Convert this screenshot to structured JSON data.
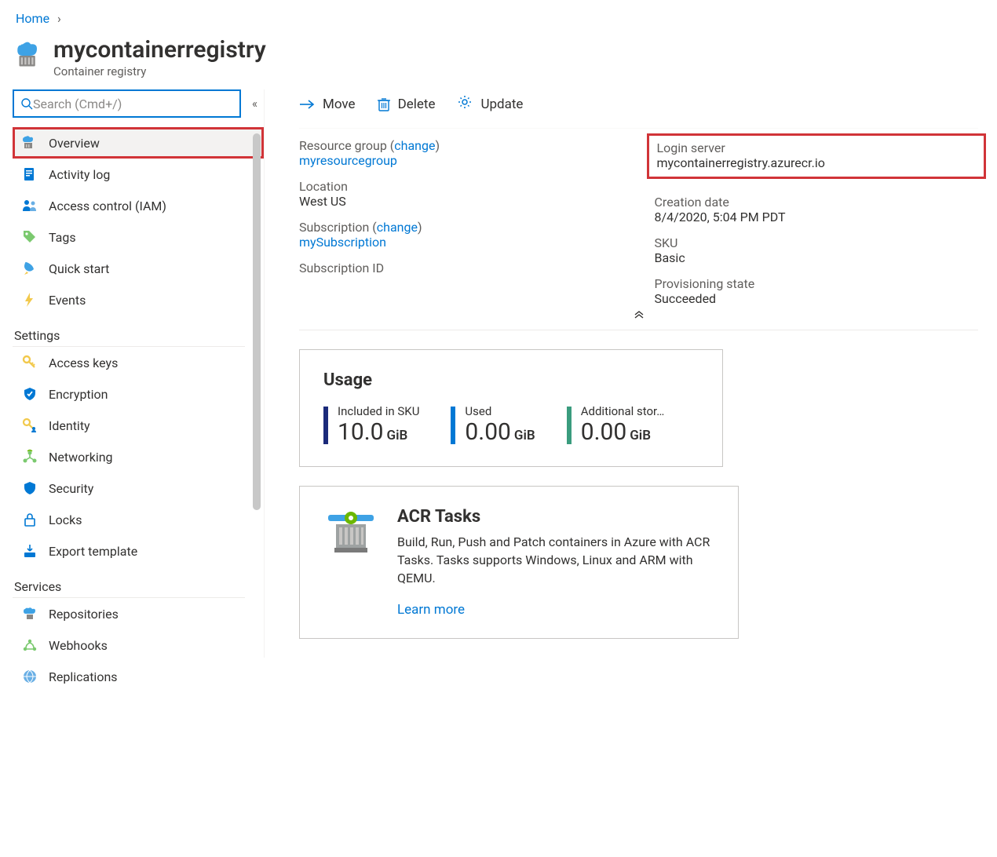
{
  "breadcrumb": {
    "home": "Home"
  },
  "header": {
    "title": "mycontainerregistry",
    "subtitle": "Container registry"
  },
  "search": {
    "placeholder": "Search (Cmd+/)"
  },
  "sidebar": {
    "items": [
      {
        "label": "Overview",
        "icon": "registry",
        "selected": true
      },
      {
        "label": "Activity log",
        "icon": "log"
      },
      {
        "label": "Access control (IAM)",
        "icon": "iam"
      },
      {
        "label": "Tags",
        "icon": "tag"
      },
      {
        "label": "Quick start",
        "icon": "quickstart"
      },
      {
        "label": "Events",
        "icon": "events"
      }
    ],
    "sections": [
      {
        "title": "Settings",
        "items": [
          {
            "label": "Access keys",
            "icon": "key"
          },
          {
            "label": "Encryption",
            "icon": "shield-check"
          },
          {
            "label": "Identity",
            "icon": "key-user"
          },
          {
            "label": "Networking",
            "icon": "networking"
          },
          {
            "label": "Security",
            "icon": "shield"
          },
          {
            "label": "Locks",
            "icon": "lock"
          },
          {
            "label": "Export template",
            "icon": "export"
          }
        ]
      },
      {
        "title": "Services",
        "items": [
          {
            "label": "Repositories",
            "icon": "repositories"
          },
          {
            "label": "Webhooks",
            "icon": "webhooks"
          },
          {
            "label": "Replications",
            "icon": "replications"
          }
        ]
      }
    ]
  },
  "toolbar": {
    "move": "Move",
    "delete": "Delete",
    "update": "Update"
  },
  "essentials": {
    "left": {
      "resource_group_label": "Resource group",
      "change": "change",
      "resource_group_value": "myresourcegroup",
      "location_label": "Location",
      "location_value": "West US",
      "subscription_label": "Subscription",
      "subscription_value": "mySubscription",
      "subscription_id_label": "Subscription ID"
    },
    "right": {
      "login_server_label": "Login server",
      "login_server_value": "mycontainerregistry.azurecr.io",
      "creation_label": "Creation date",
      "creation_value": "8/4/2020, 5:04 PM PDT",
      "sku_label": "SKU",
      "sku_value": "Basic",
      "prov_label": "Provisioning state",
      "prov_value": "Succeeded"
    }
  },
  "usage": {
    "title": "Usage",
    "items": [
      {
        "label": "Included in SKU",
        "value": "10.0",
        "unit": "GiB",
        "color": "#1b2a7a"
      },
      {
        "label": "Used",
        "value": "0.00",
        "unit": "GiB",
        "color": "#0078d4"
      },
      {
        "label": "Additional stor…",
        "value": "0.00",
        "unit": "GiB",
        "color": "#3a9c7e"
      }
    ]
  },
  "tasks": {
    "title": "ACR Tasks",
    "desc": "Build, Run, Push and Patch containers in Azure with ACR Tasks. Tasks supports Windows, Linux and ARM with QEMU.",
    "learn": "Learn more"
  },
  "colors": {
    "link": "#0078d4",
    "highlight_border": "#d13438"
  }
}
